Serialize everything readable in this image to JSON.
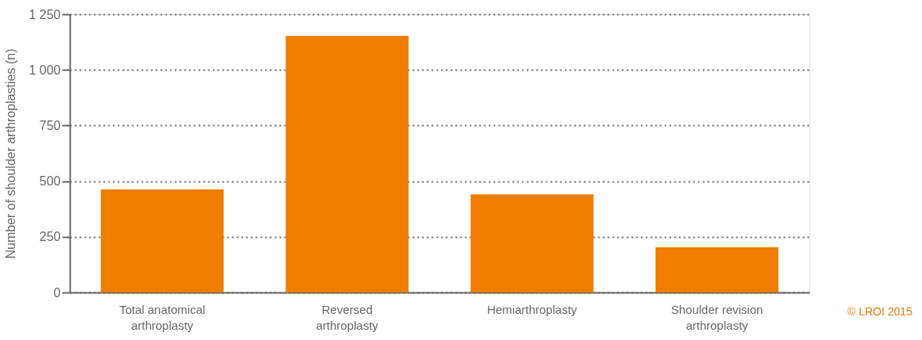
{
  "chart_data": {
    "type": "bar",
    "ylabel": "Number of shoulder arthroplasties (n)",
    "categories": [
      "Total anatomical arthroplasty",
      "Reversed arthroplasty",
      "Hemiarthroplasty",
      "Shoulder revision arthroplasty"
    ],
    "values": [
      463,
      1153,
      441,
      203
    ],
    "color": "#ee7d00",
    "ylim": [
      0,
      1250
    ],
    "yticks": [
      0,
      250,
      500,
      750,
      {
        "value": 1000,
        "label": "1 000"
      },
      {
        "value": 1250,
        "label": "1 250"
      }
    ],
    "grid": "y",
    "annotations": [
      "© LROI 2015"
    ]
  }
}
